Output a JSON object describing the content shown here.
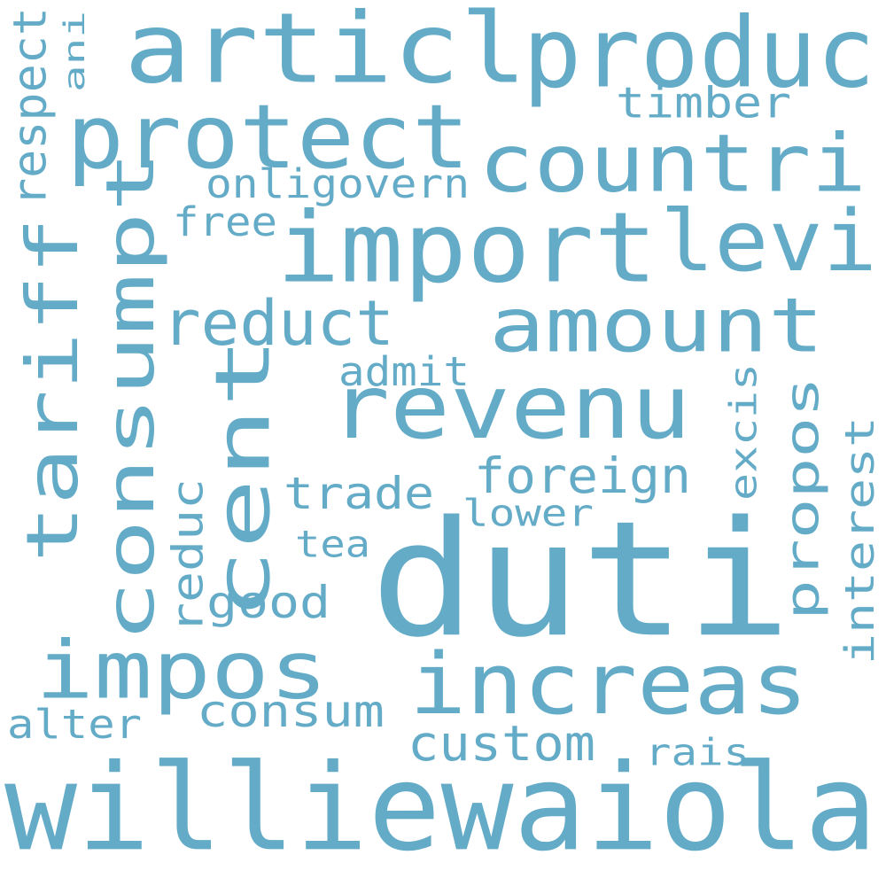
{
  "word_color": "#63abc7",
  "background_color": "#ffffff",
  "words": [
    {
      "text": "duti",
      "orientation": "horizontal"
    },
    {
      "text": "williewaiola",
      "orientation": "horizontal"
    },
    {
      "text": "articl",
      "orientation": "horizontal"
    },
    {
      "text": "produc",
      "orientation": "horizontal"
    },
    {
      "text": "import",
      "orientation": "horizontal"
    },
    {
      "text": "protect",
      "orientation": "horizontal"
    },
    {
      "text": "countri",
      "orientation": "horizontal"
    },
    {
      "text": "levi",
      "orientation": "horizontal"
    },
    {
      "text": "amount",
      "orientation": "horizontal"
    },
    {
      "text": "revenu",
      "orientation": "horizontal"
    },
    {
      "text": "increas",
      "orientation": "horizontal"
    },
    {
      "text": "impos",
      "orientation": "horizontal"
    },
    {
      "text": "tariff",
      "orientation": "vertical"
    },
    {
      "text": "consumpt",
      "orientation": "vertical"
    },
    {
      "text": "cent",
      "orientation": "vertical"
    },
    {
      "text": "reduct",
      "orientation": "horizontal"
    },
    {
      "text": "custom",
      "orientation": "horizontal"
    },
    {
      "text": "foreign",
      "orientation": "horizontal"
    },
    {
      "text": "trade",
      "orientation": "horizontal"
    },
    {
      "text": "consum",
      "orientation": "horizontal"
    },
    {
      "text": "good",
      "orientation": "horizontal"
    },
    {
      "text": "propos",
      "orientation": "vertical"
    },
    {
      "text": "timber",
      "orientation": "horizontal"
    },
    {
      "text": "onligovern",
      "orientation": "horizontal"
    },
    {
      "text": "free",
      "orientation": "horizontal"
    },
    {
      "text": "admit",
      "orientation": "horizontal"
    },
    {
      "text": "lower",
      "orientation": "horizontal"
    },
    {
      "text": "tea",
      "orientation": "horizontal"
    },
    {
      "text": "rais",
      "orientation": "horizontal"
    },
    {
      "text": "alter",
      "orientation": "horizontal"
    },
    {
      "text": "respect",
      "orientation": "vertical"
    },
    {
      "text": "ani",
      "orientation": "vertical"
    },
    {
      "text": "reduc",
      "orientation": "vertical"
    },
    {
      "text": "excis",
      "orientation": "vertical"
    },
    {
      "text": "interest",
      "orientation": "vertical"
    }
  ]
}
